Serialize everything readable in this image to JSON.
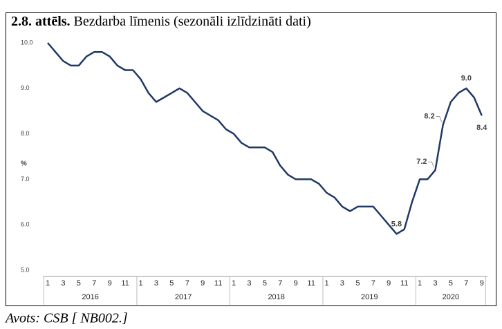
{
  "chart_data": {
    "type": "line",
    "title_bold": "2.8. attēls.",
    "title": "Bezdarba līmenis (sezonāli izlīdzināti dati)",
    "ylabel": "%",
    "source": "Avots: CSB [ NB002.]",
    "categories": [
      "1",
      null,
      "3",
      null,
      "5",
      null,
      "7",
      null,
      "9",
      null,
      "11",
      null,
      "1",
      null,
      "3",
      null,
      "5",
      null,
      "7",
      null,
      "9",
      null,
      "11",
      null,
      "1",
      null,
      "3",
      null,
      "5",
      null,
      "7",
      null,
      "9",
      null,
      "11",
      null,
      "1",
      null,
      "3",
      null,
      "5",
      null,
      "7",
      null,
      "9",
      null,
      "11",
      null,
      "1",
      null,
      "3",
      null,
      "5",
      null,
      "7",
      null,
      "9"
    ],
    "groups": [
      "2016",
      "2017",
      "2018",
      "2019",
      "2020"
    ],
    "series": [
      {
        "name": "Bezdarba līmenis",
        "color": "#1f3864",
        "values": [
          10.0,
          9.8,
          9.6,
          9.5,
          9.5,
          9.7,
          9.8,
          9.8,
          9.7,
          9.5,
          9.4,
          9.4,
          9.2,
          8.9,
          8.7,
          8.8,
          8.9,
          9.0,
          8.9,
          8.7,
          8.5,
          8.4,
          8.3,
          8.1,
          8.0,
          7.8,
          7.7,
          7.7,
          7.7,
          7.6,
          7.3,
          7.1,
          7.0,
          7.0,
          7.0,
          6.9,
          6.7,
          6.6,
          6.4,
          6.3,
          6.4,
          6.4,
          6.4,
          6.2,
          6.0,
          5.8,
          5.9,
          6.5,
          7.0,
          7.0,
          7.2,
          8.2,
          8.7,
          8.9,
          9.0,
          8.8,
          8.4
        ],
        "value_labels": [
          null,
          null,
          null,
          null,
          null,
          null,
          null,
          null,
          null,
          null,
          null,
          null,
          null,
          null,
          null,
          null,
          null,
          null,
          null,
          null,
          null,
          null,
          null,
          null,
          null,
          null,
          null,
          null,
          null,
          null,
          null,
          null,
          null,
          null,
          null,
          null,
          null,
          null,
          null,
          null,
          null,
          null,
          null,
          null,
          null,
          "5.8",
          null,
          null,
          null,
          null,
          "7.2",
          "8.2",
          null,
          null,
          "9.0",
          null,
          "8.4"
        ]
      }
    ],
    "ylim": [
      5.0,
      10.0
    ],
    "yticks": [
      {
        "value": 5.0,
        "label": "5.0"
      },
      {
        "value": 6.0,
        "label": "6.0"
      },
      {
        "value": 7.0,
        "label": "7.0"
      },
      {
        "value": 8.0,
        "label": "8.0"
      },
      {
        "value": 9.0,
        "label": "9.0"
      },
      {
        "value": 10.0,
        "label": "10.0"
      }
    ],
    "grid": false
  }
}
